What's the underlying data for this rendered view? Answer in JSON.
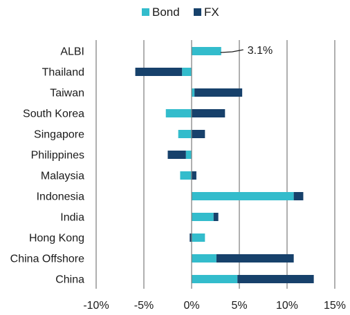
{
  "chart_data": {
    "type": "bar",
    "orientation": "horizontal",
    "stacked": true,
    "categories": [
      "ALBI",
      "Thailand",
      "Taiwan",
      "South Korea",
      "Singapore",
      "Philippines",
      "Malaysia",
      "Indonesia",
      "India",
      "Hong Kong",
      "China Offshore",
      "China"
    ],
    "series": [
      {
        "name": "Bond",
        "color": "#33bccc",
        "values": [
          3.1,
          -1.0,
          0.3,
          -2.7,
          -1.4,
          -0.6,
          -1.2,
          10.7,
          2.3,
          1.4,
          2.6,
          4.8
        ]
      },
      {
        "name": "FX",
        "color": "#17416b",
        "values": [
          0.0,
          -4.9,
          5.0,
          3.5,
          1.4,
          -1.9,
          0.5,
          1.0,
          0.5,
          -0.2,
          8.1,
          8.0
        ]
      }
    ],
    "xlim": [
      -10,
      15
    ],
    "xticks": [
      -10,
      -5,
      0,
      5,
      10,
      15
    ],
    "xtick_labels": [
      "-10%",
      "-5%",
      "0%",
      "5%",
      "10%",
      "15%"
    ],
    "grid": "vertical",
    "legend_position": "top",
    "annotations": [
      {
        "category": "ALBI",
        "text": "3.1%"
      }
    ],
    "title": "",
    "xlabel": "",
    "ylabel": ""
  }
}
